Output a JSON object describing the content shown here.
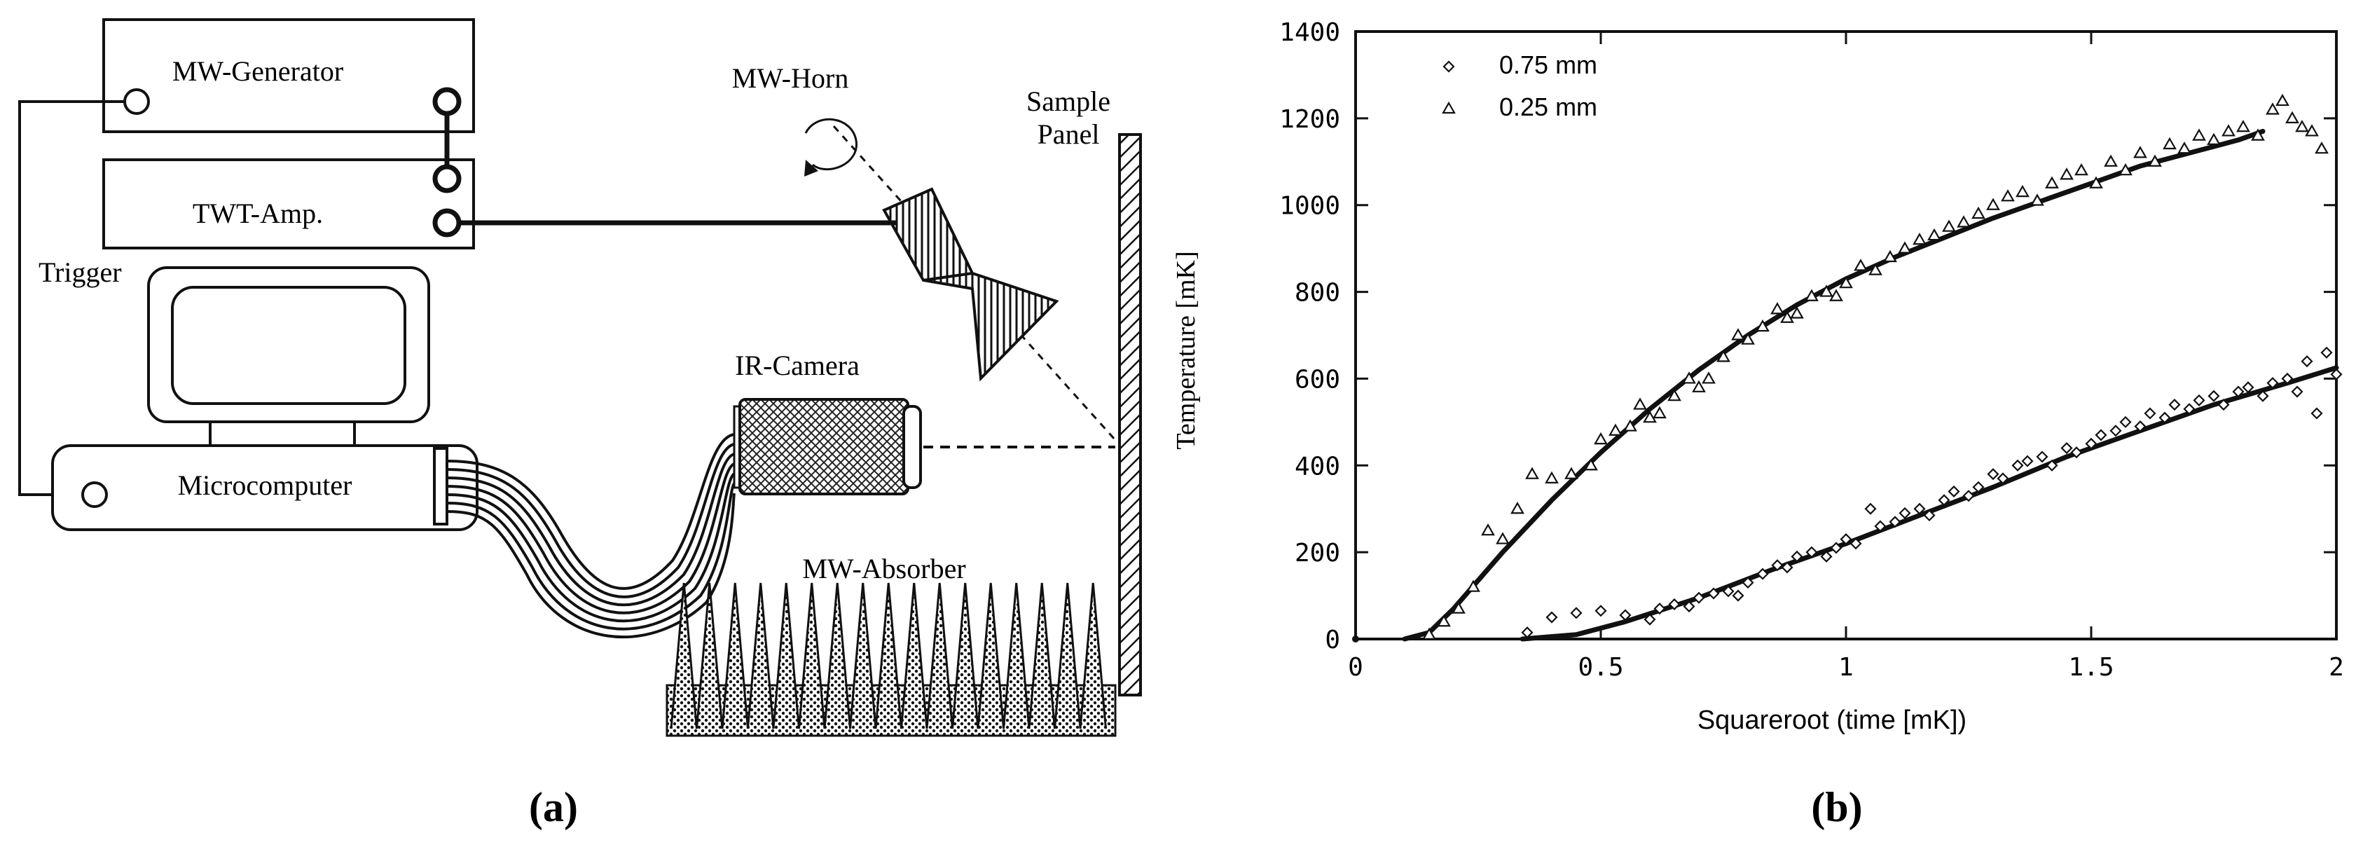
{
  "panel_a": {
    "label": "(a)",
    "mw_generator": "MW-Generator",
    "twt_amp": "TWT-Amp.",
    "trigger": "Trigger",
    "microcomputer": "Microcomputer",
    "mw_horn": "MW-Horn",
    "sample_panel_line1": "Sample",
    "sample_panel_line2": "Panel",
    "ir_camera": "IR-Camera",
    "mw_absorber": "MW-Absorber"
  },
  "panel_b": {
    "label": "(b)"
  },
  "chart_data": {
    "type": "scatter",
    "title": "",
    "xlabel": "Squareroot (time [mK])",
    "ylabel": "Temperature [mK]",
    "xlim": [
      0,
      2
    ],
    "ylim": [
      0,
      1400
    ],
    "xticks": [
      0,
      0.5,
      1,
      1.5,
      2
    ],
    "xtick_labels": [
      "0",
      "0.5",
      "1",
      "1.5",
      "2"
    ],
    "yticks": [
      0,
      200,
      400,
      600,
      800,
      1000,
      1200,
      1400
    ],
    "ytick_labels": [
      "0",
      "200",
      "400",
      "600",
      "800",
      "1000",
      "1200",
      "1400"
    ],
    "legend_position": "top-left",
    "grid": false,
    "series": [
      {
        "name": "0.75 mm",
        "marker": "diamond",
        "points": [
          [
            0.35,
            15
          ],
          [
            0.4,
            50
          ],
          [
            0.45,
            60
          ],
          [
            0.5,
            65
          ],
          [
            0.55,
            55
          ],
          [
            0.6,
            45
          ],
          [
            0.62,
            70
          ],
          [
            0.65,
            80
          ],
          [
            0.68,
            75
          ],
          [
            0.7,
            95
          ],
          [
            0.73,
            105
          ],
          [
            0.76,
            110
          ],
          [
            0.78,
            100
          ],
          [
            0.8,
            130
          ],
          [
            0.83,
            150
          ],
          [
            0.86,
            170
          ],
          [
            0.88,
            165
          ],
          [
            0.9,
            190
          ],
          [
            0.93,
            200
          ],
          [
            0.96,
            190
          ],
          [
            0.98,
            210
          ],
          [
            1.0,
            230
          ],
          [
            1.02,
            220
          ],
          [
            1.05,
            300
          ],
          [
            1.07,
            260
          ],
          [
            1.1,
            270
          ],
          [
            1.12,
            290
          ],
          [
            1.15,
            300
          ],
          [
            1.17,
            285
          ],
          [
            1.2,
            320
          ],
          [
            1.22,
            340
          ],
          [
            1.25,
            330
          ],
          [
            1.27,
            350
          ],
          [
            1.3,
            380
          ],
          [
            1.32,
            370
          ],
          [
            1.35,
            400
          ],
          [
            1.37,
            410
          ],
          [
            1.4,
            420
          ],
          [
            1.42,
            400
          ],
          [
            1.45,
            440
          ],
          [
            1.47,
            430
          ],
          [
            1.5,
            450
          ],
          [
            1.52,
            470
          ],
          [
            1.55,
            480
          ],
          [
            1.57,
            500
          ],
          [
            1.6,
            490
          ],
          [
            1.62,
            520
          ],
          [
            1.65,
            510
          ],
          [
            1.67,
            540
          ],
          [
            1.7,
            530
          ],
          [
            1.72,
            550
          ],
          [
            1.75,
            560
          ],
          [
            1.77,
            540
          ],
          [
            1.8,
            570
          ],
          [
            1.82,
            580
          ],
          [
            1.85,
            560
          ],
          [
            1.87,
            590
          ],
          [
            1.9,
            600
          ],
          [
            1.92,
            570
          ],
          [
            1.94,
            640
          ],
          [
            1.96,
            520
          ],
          [
            1.98,
            660
          ],
          [
            2.0,
            610
          ]
        ],
        "fit": [
          [
            0.34,
            0
          ],
          [
            0.45,
            10
          ],
          [
            0.55,
            40
          ],
          [
            0.7,
            95
          ],
          [
            0.85,
            160
          ],
          [
            1.0,
            220
          ],
          [
            1.15,
            285
          ],
          [
            1.3,
            350
          ],
          [
            1.45,
            420
          ],
          [
            1.6,
            480
          ],
          [
            1.75,
            540
          ],
          [
            1.9,
            590
          ],
          [
            2.0,
            625
          ]
        ]
      },
      {
        "name": "0.25 mm",
        "marker": "triangle",
        "points": [
          [
            0.15,
            10
          ],
          [
            0.18,
            40
          ],
          [
            0.21,
            70
          ],
          [
            0.24,
            120
          ],
          [
            0.27,
            250
          ],
          [
            0.3,
            230
          ],
          [
            0.33,
            300
          ],
          [
            0.36,
            380
          ],
          [
            0.4,
            370
          ],
          [
            0.44,
            380
          ],
          [
            0.48,
            400
          ],
          [
            0.5,
            460
          ],
          [
            0.53,
            480
          ],
          [
            0.56,
            490
          ],
          [
            0.58,
            540
          ],
          [
            0.6,
            510
          ],
          [
            0.62,
            520
          ],
          [
            0.65,
            560
          ],
          [
            0.68,
            600
          ],
          [
            0.7,
            580
          ],
          [
            0.72,
            600
          ],
          [
            0.75,
            650
          ],
          [
            0.78,
            700
          ],
          [
            0.8,
            690
          ],
          [
            0.83,
            720
          ],
          [
            0.86,
            760
          ],
          [
            0.88,
            740
          ],
          [
            0.9,
            750
          ],
          [
            0.93,
            790
          ],
          [
            0.96,
            800
          ],
          [
            0.98,
            790
          ],
          [
            1.0,
            820
          ],
          [
            1.03,
            860
          ],
          [
            1.06,
            850
          ],
          [
            1.09,
            880
          ],
          [
            1.12,
            900
          ],
          [
            1.15,
            920
          ],
          [
            1.18,
            930
          ],
          [
            1.21,
            950
          ],
          [
            1.24,
            960
          ],
          [
            1.27,
            980
          ],
          [
            1.3,
            1000
          ],
          [
            1.33,
            1020
          ],
          [
            1.36,
            1030
          ],
          [
            1.39,
            1010
          ],
          [
            1.42,
            1050
          ],
          [
            1.45,
            1070
          ],
          [
            1.48,
            1080
          ],
          [
            1.51,
            1050
          ],
          [
            1.54,
            1100
          ],
          [
            1.57,
            1080
          ],
          [
            1.6,
            1120
          ],
          [
            1.63,
            1100
          ],
          [
            1.66,
            1140
          ],
          [
            1.69,
            1130
          ],
          [
            1.72,
            1160
          ],
          [
            1.75,
            1150
          ],
          [
            1.78,
            1170
          ],
          [
            1.81,
            1180
          ],
          [
            1.84,
            1160
          ],
          [
            1.87,
            1220
          ],
          [
            1.89,
            1240
          ],
          [
            1.91,
            1200
          ],
          [
            1.93,
            1180
          ],
          [
            1.95,
            1170
          ],
          [
            1.97,
            1130
          ]
        ],
        "fit": [
          [
            0.1,
            0
          ],
          [
            0.15,
            15
          ],
          [
            0.2,
            70
          ],
          [
            0.3,
            200
          ],
          [
            0.4,
            320
          ],
          [
            0.5,
            430
          ],
          [
            0.6,
            530
          ],
          [
            0.7,
            620
          ],
          [
            0.8,
            700
          ],
          [
            0.9,
            770
          ],
          [
            1.0,
            830
          ],
          [
            1.1,
            880
          ],
          [
            1.2,
            925
          ],
          [
            1.3,
            970
          ],
          [
            1.4,
            1010
          ],
          [
            1.5,
            1050
          ],
          [
            1.6,
            1090
          ],
          [
            1.7,
            1120
          ],
          [
            1.8,
            1150
          ],
          [
            1.85,
            1170
          ]
        ]
      }
    ]
  }
}
